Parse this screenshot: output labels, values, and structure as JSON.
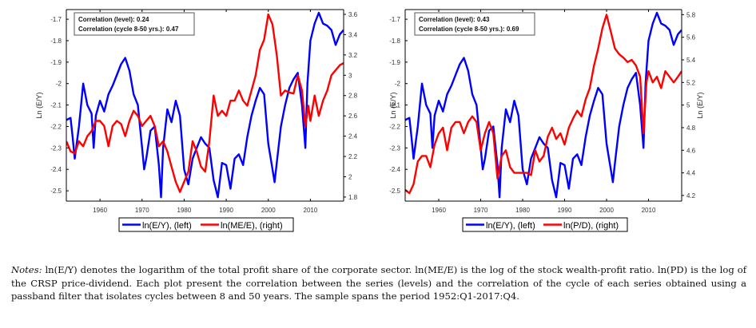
{
  "charts": [
    {
      "id": "left",
      "type": "line",
      "title": "",
      "xlabel": "",
      "ylabel_left": "Ln (E/Y)",
      "ylabel_right": "",
      "xlim": [
        1952,
        2017.9
      ],
      "ylim_left": [
        -2.548,
        -1.655
      ],
      "ylim_right": [
        1.76,
        3.647
      ],
      "xticks": [
        1960,
        1970,
        1980,
        1990,
        2000,
        2010
      ],
      "xtick_labels": [
        "1960",
        "1970",
        "1980",
        "1990",
        "2000",
        "2010"
      ],
      "yticks_left": [
        -1.7,
        -1.8,
        -1.9,
        -2,
        -2.1,
        -2.2,
        -2.3,
        -2.4,
        -2.5
      ],
      "ytick_labels_left": [
        "-1.7",
        "-1.8",
        "-1.9",
        "-2",
        "-2.1",
        "-2.2",
        "-2.3",
        "-2.4",
        "-2.5"
      ],
      "yticks_right": [
        3.6,
        3.4,
        3.2,
        3,
        2.8,
        2.6,
        2.4,
        2.2,
        2,
        1.8
      ],
      "ytick_labels_right": [
        "3.6",
        "3.4",
        "3.2",
        "3",
        "2.8",
        "2.6",
        "2.4",
        "2.2",
        "2",
        "1.8"
      ],
      "grid": false,
      "annotation": [
        "Correlation (level): 0.24",
        "Correlation (cycle 8-50 yrs.): 0.47"
      ],
      "legend_placement": "bottom-center",
      "series": [
        {
          "name": "ln(E/Y), (left)",
          "axis": "left",
          "color": "#0000ff",
          "x": [
            1952,
            1953,
            1953.5,
            1954,
            1955,
            1956,
            1957,
            1958,
            1958.5,
            1959,
            1960,
            1961,
            1962,
            1963,
            1964,
            1965,
            1966,
            1967,
            1968,
            1969,
            1970,
            1970.5,
            1971,
            1972,
            1973,
            1974,
            1974.5,
            1975,
            1976,
            1977,
            1978,
            1979,
            1980,
            1981,
            1982,
            1983,
            1984,
            1985,
            1986,
            1987,
            1988,
            1989,
            1990,
            1991,
            1992,
            1993,
            1994,
            1995,
            1996,
            1997,
            1998,
            1999,
            2000,
            2001,
            2001.5,
            2002,
            2003,
            2004,
            2005,
            2006,
            2007,
            2008,
            2008.8,
            2009.3,
            2010,
            2011,
            2012,
            2013,
            2014,
            2015,
            2016,
            2017,
            2017.9
          ],
          "y": [
            -2.17,
            -2.16,
            -2.25,
            -2.35,
            -2.2,
            -2.0,
            -2.1,
            -2.14,
            -2.3,
            -2.15,
            -2.08,
            -2.13,
            -2.05,
            -2.01,
            -1.96,
            -1.91,
            -1.88,
            -1.94,
            -2.05,
            -2.1,
            -2.3,
            -2.4,
            -2.35,
            -2.22,
            -2.2,
            -2.38,
            -2.53,
            -2.3,
            -2.12,
            -2.18,
            -2.08,
            -2.15,
            -2.4,
            -2.47,
            -2.35,
            -2.3,
            -2.25,
            -2.28,
            -2.3,
            -2.45,
            -2.53,
            -2.37,
            -2.38,
            -2.49,
            -2.35,
            -2.33,
            -2.38,
            -2.25,
            -2.15,
            -2.08,
            -2.02,
            -2.05,
            -2.28,
            -2.4,
            -2.46,
            -2.37,
            -2.2,
            -2.1,
            -2.02,
            -1.98,
            -1.95,
            -2.1,
            -2.3,
            -2.0,
            -1.8,
            -1.72,
            -1.67,
            -1.72,
            -1.73,
            -1.75,
            -1.82,
            -1.77,
            -1.75
          ]
        },
        {
          "name": "ln(ME/E), (right)",
          "axis": "right",
          "color": "#ff0000",
          "x": [
            1952,
            1953,
            1954,
            1955,
            1956,
            1957,
            1958,
            1959,
            1960,
            1961,
            1962,
            1963,
            1964,
            1965,
            1966,
            1967,
            1968,
            1969,
            1970,
            1971,
            1972,
            1973,
            1974,
            1975,
            1976,
            1977,
            1978,
            1979,
            1980,
            1981,
            1982,
            1983,
            1984,
            1985,
            1986,
            1987,
            1988,
            1989,
            1990,
            1991,
            1992,
            1993,
            1994,
            1995,
            1996,
            1997,
            1998,
            1999,
            2000,
            2001,
            2002,
            2003,
            2004,
            2005,
            2006,
            2007,
            2008,
            2008.8,
            2009.5,
            2010,
            2011,
            2012,
            2013,
            2014,
            2015,
            2016,
            2017,
            2017.9
          ],
          "y": [
            2.35,
            2.25,
            2.23,
            2.35,
            2.3,
            2.4,
            2.45,
            2.55,
            2.55,
            2.5,
            2.3,
            2.5,
            2.55,
            2.52,
            2.4,
            2.55,
            2.65,
            2.6,
            2.5,
            2.55,
            2.6,
            2.5,
            2.3,
            2.35,
            2.25,
            2.1,
            1.95,
            1.85,
            1.95,
            2.05,
            2.35,
            2.25,
            2.1,
            2.05,
            2.35,
            2.8,
            2.6,
            2.65,
            2.6,
            2.75,
            2.75,
            2.85,
            2.75,
            2.7,
            2.85,
            3.0,
            3.25,
            3.35,
            3.6,
            3.5,
            3.2,
            2.8,
            2.85,
            2.83,
            2.82,
            3.0,
            2.85,
            2.5,
            2.7,
            2.55,
            2.8,
            2.6,
            2.75,
            2.85,
            3.0,
            3.05,
            3.1,
            3.12
          ]
        }
      ]
    },
    {
      "id": "right",
      "type": "line",
      "title": "",
      "xlabel": "",
      "ylabel_left": "Ln (E/Y)",
      "ylabel_right": "Ln (E/Y)",
      "xlim": [
        1952,
        2017.9
      ],
      "ylim_left": [
        -2.548,
        -1.655
      ],
      "ylim_right": [
        4.15,
        5.845
      ],
      "xticks": [
        1960,
        1970,
        1980,
        1990,
        2000,
        2010
      ],
      "xtick_labels": [
        "1960",
        "1970",
        "1980",
        "1990",
        "2000",
        "2010"
      ],
      "yticks_left": [
        -1.7,
        -1.8,
        -1.9,
        -2,
        -2.1,
        -2.2,
        -2.3,
        -2.4,
        -2.5
      ],
      "ytick_labels_left": [
        "-1.7",
        "-1.8",
        "-1.9",
        "-2",
        "-2.1",
        "-2.2",
        "-2.3",
        "-2.4",
        "-2.5"
      ],
      "yticks_right": [
        5.8,
        5.6,
        5.4,
        5.2,
        5,
        4.8,
        4.6,
        4.4,
        4.2
      ],
      "ytick_labels_right": [
        "5.8",
        "5.6",
        "5.4",
        "5.2",
        "5",
        "4.8",
        "4.6",
        "4.4",
        "4.2"
      ],
      "grid": false,
      "annotation": [
        "Correlation (level): 0.43",
        "Correlation (cycle 8-50 yrs.): 0.69"
      ],
      "legend_placement": "bottom-center",
      "series": [
        {
          "name": "ln(E/Y), (left)",
          "axis": "left",
          "color": "#0000ff",
          "x": [
            1952,
            1953,
            1953.5,
            1954,
            1955,
            1956,
            1957,
            1958,
            1958.5,
            1959,
            1960,
            1961,
            1962,
            1963,
            1964,
            1965,
            1966,
            1967,
            1968,
            1969,
            1970,
            1970.5,
            1971,
            1972,
            1973,
            1974,
            1974.5,
            1975,
            1976,
            1977,
            1978,
            1979,
            1980,
            1981,
            1982,
            1983,
            1984,
            1985,
            1986,
            1987,
            1988,
            1989,
            1990,
            1991,
            1992,
            1993,
            1994,
            1995,
            1996,
            1997,
            1998,
            1999,
            2000,
            2001,
            2001.5,
            2002,
            2003,
            2004,
            2005,
            2006,
            2007,
            2008,
            2008.8,
            2009.3,
            2010,
            2011,
            2012,
            2013,
            2014,
            2015,
            2016,
            2017,
            2017.9
          ],
          "y": [
            -2.17,
            -2.16,
            -2.25,
            -2.35,
            -2.2,
            -2.0,
            -2.1,
            -2.14,
            -2.3,
            -2.15,
            -2.08,
            -2.13,
            -2.05,
            -2.01,
            -1.96,
            -1.91,
            -1.88,
            -1.94,
            -2.05,
            -2.1,
            -2.3,
            -2.4,
            -2.35,
            -2.22,
            -2.2,
            -2.38,
            -2.53,
            -2.3,
            -2.12,
            -2.18,
            -2.08,
            -2.15,
            -2.4,
            -2.47,
            -2.35,
            -2.3,
            -2.25,
            -2.28,
            -2.3,
            -2.45,
            -2.53,
            -2.37,
            -2.38,
            -2.49,
            -2.35,
            -2.33,
            -2.38,
            -2.25,
            -2.15,
            -2.08,
            -2.02,
            -2.05,
            -2.28,
            -2.4,
            -2.46,
            -2.37,
            -2.2,
            -2.1,
            -2.02,
            -1.98,
            -1.95,
            -2.1,
            -2.3,
            -2.0,
            -1.8,
            -1.72,
            -1.67,
            -1.72,
            -1.73,
            -1.75,
            -1.82,
            -1.77,
            -1.75
          ]
        },
        {
          "name": "ln(P/D), (right)",
          "axis": "right",
          "color": "#ff0000",
          "x": [
            1952,
            1953,
            1954,
            1955,
            1956,
            1957,
            1958,
            1959,
            1960,
            1961,
            1962,
            1963,
            1964,
            1965,
            1966,
            1967,
            1968,
            1969,
            1970,
            1971,
            1972,
            1973,
            1974,
            1975,
            1976,
            1977,
            1978,
            1979,
            1980,
            1981,
            1982,
            1983,
            1984,
            1985,
            1986,
            1987,
            1988,
            1989,
            1990,
            1991,
            1992,
            1993,
            1994,
            1995,
            1996,
            1997,
            1998,
            1999,
            2000,
            2001,
            2002,
            2003,
            2004,
            2005,
            2006,
            2007,
            2008,
            2008.8,
            2009.5,
            2010,
            2011,
            2012,
            2013,
            2014,
            2015,
            2016,
            2017,
            2017.9
          ],
          "y": [
            4.25,
            4.22,
            4.3,
            4.5,
            4.55,
            4.55,
            4.45,
            4.65,
            4.75,
            4.8,
            4.6,
            4.8,
            4.85,
            4.85,
            4.75,
            4.85,
            4.9,
            4.85,
            4.6,
            4.75,
            4.85,
            4.75,
            4.35,
            4.55,
            4.6,
            4.45,
            4.4,
            4.4,
            4.4,
            4.4,
            4.38,
            4.6,
            4.5,
            4.55,
            4.72,
            4.8,
            4.7,
            4.75,
            4.65,
            4.8,
            4.88,
            4.95,
            4.9,
            5.05,
            5.15,
            5.35,
            5.5,
            5.68,
            5.8,
            5.65,
            5.5,
            5.45,
            5.42,
            5.38,
            5.4,
            5.35,
            5.25,
            4.75,
            5.2,
            5.3,
            5.2,
            5.25,
            5.15,
            5.3,
            5.25,
            5.2,
            5.25,
            5.3
          ]
        }
      ]
    }
  ],
  "legend": {
    "left": [
      "ln(E/Y), (left)",
      "ln(ME/E), (right)"
    ],
    "right": [
      "ln(E/Y), (left)",
      "ln(P/D), (right)"
    ]
  },
  "notes": {
    "label": "Notes:",
    "text": " ln(E/Y) denotes the logarithm of the total profit share of the corporate sector. ln(ME/E) is the log of the stock wealth-profit ratio. ln(PD) is the log of the CRSP price-dividend. Each plot present the correlation between the series (levels) and the correlation of the cycle of each series obtained using a passband filter that isolates cycles between 8 and 50 years. The sample spans the period 1952:Q1-2017:Q4."
  },
  "chart_data": [
    {
      "type": "line",
      "title": "",
      "ylabel": "Ln (E/Y)",
      "series_names": [
        "ln(E/Y), (left)",
        "ln(ME/E), (right)"
      ],
      "annotation": [
        "Correlation (level): 0.24",
        "Correlation (cycle 8-50 yrs.): 0.47"
      ]
    },
    {
      "type": "line",
      "title": "",
      "ylabel": "Ln (E/Y)",
      "series_names": [
        "ln(E/Y), (left)",
        "ln(P/D), (right)"
      ],
      "annotation": [
        "Correlation (level): 0.43",
        "Correlation (cycle 8-50 yrs.): 0.69"
      ]
    }
  ]
}
